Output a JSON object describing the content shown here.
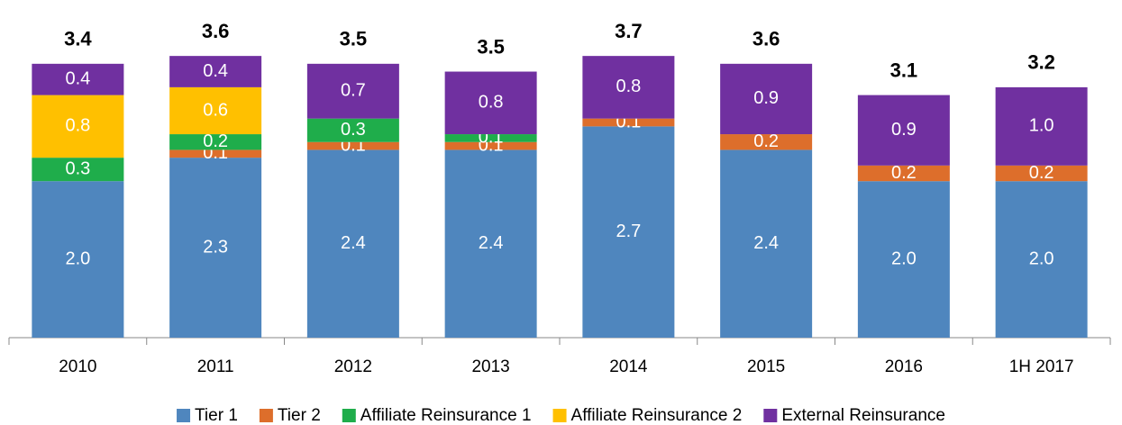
{
  "chart_data": {
    "type": "stacked_bar",
    "categories": [
      "2010",
      "2011",
      "2012",
      "2013",
      "2014",
      "2015",
      "2016",
      "1H 2017"
    ],
    "ylim": [
      0,
      4.2
    ],
    "series": [
      {
        "name": "Tier 1",
        "color": "#4f86be",
        "values": [
          2.0,
          2.3,
          2.4,
          2.4,
          2.7,
          2.4,
          2.0,
          2.0
        ],
        "value_labels": [
          "2.0",
          "2.3",
          "2.4",
          "2.4",
          "2.7",
          "2.4",
          "2.0",
          "2.0"
        ]
      },
      {
        "name": "Tier 2",
        "color": "#dd6e2b",
        "values": [
          null,
          0.1,
          0.1,
          0.1,
          0.1,
          0.2,
          0.2,
          0.2
        ],
        "value_labels": [
          null,
          "0.1",
          "0.1",
          "0.1",
          "0.1",
          "0.2",
          "0.2",
          "0.2"
        ]
      },
      {
        "name": "Affiliate Reinsurance 1",
        "color": "#1fad4b",
        "values": [
          0.3,
          0.2,
          0.3,
          0.1,
          null,
          null,
          null,
          null
        ],
        "value_labels": [
          "0.3",
          "0.2",
          "0.3",
          "0.1",
          null,
          null,
          null,
          null
        ]
      },
      {
        "name": "Affiliate Reinsurance 2",
        "color": "#ffc000",
        "values": [
          0.8,
          0.6,
          null,
          null,
          null,
          null,
          null,
          null
        ],
        "value_labels": [
          "0.8",
          "0.6",
          null,
          null,
          null,
          null,
          null,
          null
        ]
      },
      {
        "name": "External Reinsurance",
        "color": "#7030a0",
        "values": [
          0.4,
          0.4,
          0.7,
          0.8,
          0.8,
          0.9,
          0.9,
          1.0
        ],
        "value_labels": [
          "0.4",
          "0.4",
          "0.7",
          "0.8",
          "0.8",
          "0.9",
          "0.9",
          "1.0"
        ]
      }
    ],
    "totals": [
      3.4,
      3.6,
      3.5,
      3.5,
      3.7,
      3.6,
      3.1,
      3.2
    ]
  }
}
